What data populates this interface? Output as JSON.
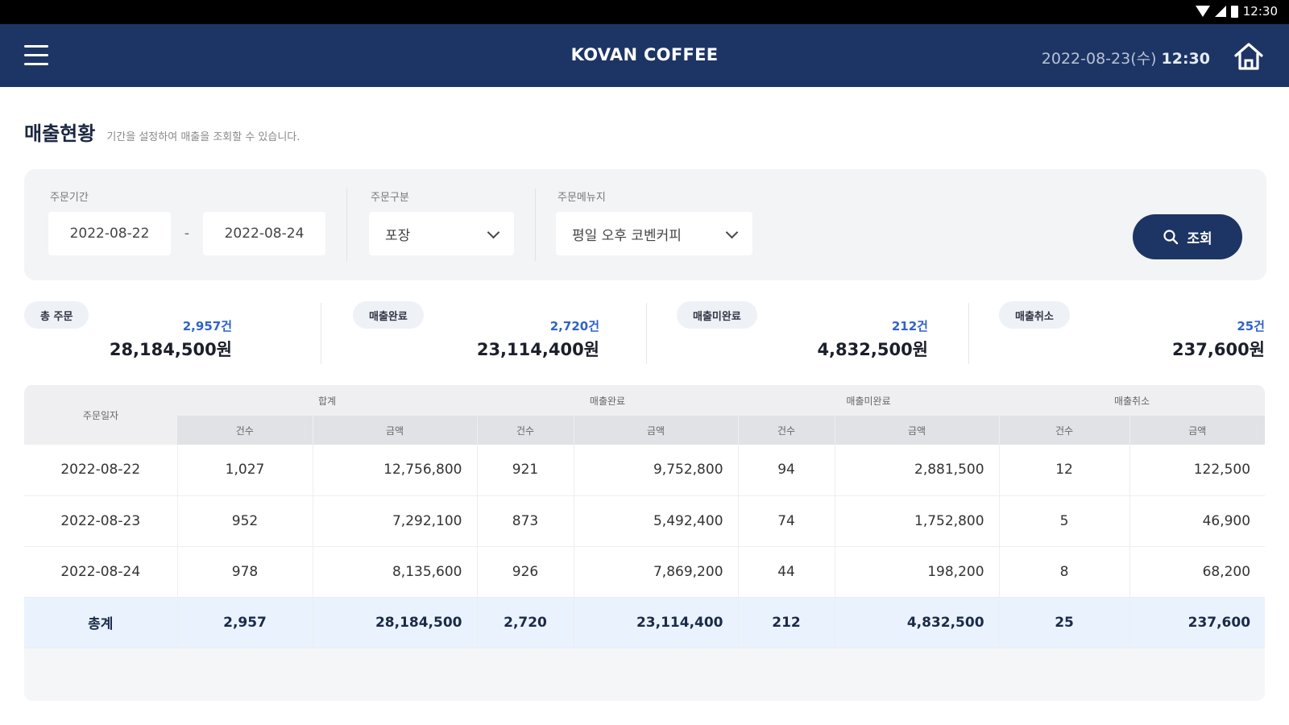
{
  "statusbar": {
    "time": "12:30"
  },
  "appbar": {
    "title": "KOVAN COFFEE",
    "date": "2022-08-23(수)",
    "time": "12:30"
  },
  "page": {
    "title": "매출현황",
    "subtitle": "기간을 설정하여 매출을 조회할 수 있습니다."
  },
  "filters": {
    "period_label": "주문기간",
    "date_from": "2022-08-22",
    "date_separator": "-",
    "date_to": "2022-08-24",
    "type_label": "주문구분",
    "type_value": "포장",
    "menu_label": "주문메뉴지",
    "menu_value": "평일 오후 코벤커피",
    "search_label": "조회"
  },
  "summary": [
    {
      "label": "총 주문",
      "count": "2,957건",
      "amount": "28,184,500원"
    },
    {
      "label": "매출완료",
      "count": "2,720건",
      "amount": "23,114,400원"
    },
    {
      "label": "매출미완료",
      "count": "212건",
      "amount": "4,832,500원"
    },
    {
      "label": "매출취소",
      "count": "25건",
      "amount": "237,600원"
    }
  ],
  "table": {
    "date_header": "주문일자",
    "groups": [
      "합계",
      "매출완료",
      "매출미완료",
      "매출취소"
    ],
    "sub_count": "건수",
    "sub_amount": "금액",
    "rows": [
      [
        "2022-08-22",
        "1,027",
        "12,756,800",
        "921",
        "9,752,800",
        "94",
        "2,881,500",
        "12",
        "122,500"
      ],
      [
        "2022-08-23",
        "952",
        "7,292,100",
        "873",
        "5,492,400",
        "74",
        "1,752,800",
        "5",
        "46,900"
      ],
      [
        "2022-08-24",
        "978",
        "8,135,600",
        "926",
        "7,869,200",
        "44",
        "198,200",
        "8",
        "68,200"
      ]
    ],
    "total": [
      "총계",
      "2,957",
      "28,184,500",
      "2,720",
      "23,114,400",
      "212",
      "4,832,500",
      "25",
      "237,600"
    ]
  }
}
